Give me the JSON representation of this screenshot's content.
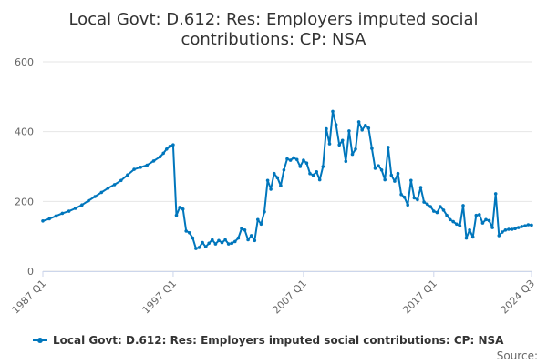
{
  "chart_data": {
    "type": "line",
    "title_line1": "Local Govt: D.612: Res: Employers imputed social",
    "title_line2": "contributions: CP: NSA",
    "ylim": [
      0,
      600
    ],
    "y_ticks": [
      "0",
      "200",
      "400",
      "600"
    ],
    "x_ticks": [
      {
        "label": "1987 Q1",
        "x": 1987.0
      },
      {
        "label": "1997 Q1",
        "x": 1997.0
      },
      {
        "label": "2007 Q1",
        "x": 2007.0
      },
      {
        "label": "2017 Q1",
        "x": 2017.0
      },
      {
        "label": "2024 Q3",
        "x": 2024.5
      }
    ],
    "xlim": [
      1987.0,
      2024.5
    ],
    "grid": true,
    "legend_position": "bottom",
    "series": [
      {
        "name": "Local Govt: D.612: Res: Employers imputed social contributions: CP: NSA",
        "color": "#0076bc",
        "points": [
          [
            1987.0,
            144
          ],
          [
            1987.5,
            150
          ],
          [
            1988.0,
            158
          ],
          [
            1988.5,
            166
          ],
          [
            1989.0,
            172
          ],
          [
            1989.5,
            180
          ],
          [
            1990.0,
            190
          ],
          [
            1990.5,
            202
          ],
          [
            1991.0,
            214
          ],
          [
            1991.5,
            226
          ],
          [
            1992.0,
            238
          ],
          [
            1992.5,
            248
          ],
          [
            1993.0,
            260
          ],
          [
            1993.5,
            276
          ],
          [
            1994.0,
            292
          ],
          [
            1994.5,
            298
          ],
          [
            1995.0,
            304
          ],
          [
            1995.5,
            316
          ],
          [
            1996.0,
            328
          ],
          [
            1996.25,
            338
          ],
          [
            1996.5,
            350
          ],
          [
            1996.75,
            358
          ],
          [
            1997.0,
            362
          ],
          [
            1997.25,
            160
          ],
          [
            1997.5,
            183
          ],
          [
            1997.75,
            178
          ],
          [
            1998.0,
            115
          ],
          [
            1998.25,
            110
          ],
          [
            1998.5,
            95
          ],
          [
            1998.75,
            65
          ],
          [
            1999.0,
            68
          ],
          [
            1999.25,
            82
          ],
          [
            1999.5,
            70
          ],
          [
            1999.75,
            80
          ],
          [
            2000.0,
            90
          ],
          [
            2000.25,
            78
          ],
          [
            2000.5,
            88
          ],
          [
            2000.75,
            82
          ],
          [
            2001.0,
            90
          ],
          [
            2001.25,
            78
          ],
          [
            2001.5,
            80
          ],
          [
            2001.75,
            85
          ],
          [
            2002.0,
            95
          ],
          [
            2002.25,
            122
          ],
          [
            2002.5,
            118
          ],
          [
            2002.75,
            90
          ],
          [
            2003.0,
            102
          ],
          [
            2003.25,
            88
          ],
          [
            2003.5,
            148
          ],
          [
            2003.75,
            135
          ],
          [
            2004.0,
            170
          ],
          [
            2004.25,
            260
          ],
          [
            2004.5,
            235
          ],
          [
            2004.75,
            280
          ],
          [
            2005.0,
            268
          ],
          [
            2005.25,
            245
          ],
          [
            2005.5,
            290
          ],
          [
            2005.75,
            322
          ],
          [
            2006.0,
            318
          ],
          [
            2006.25,
            325
          ],
          [
            2006.5,
            320
          ],
          [
            2006.75,
            300
          ],
          [
            2007.0,
            318
          ],
          [
            2007.25,
            310
          ],
          [
            2007.5,
            280
          ],
          [
            2007.75,
            275
          ],
          [
            2008.0,
            285
          ],
          [
            2008.25,
            262
          ],
          [
            2008.5,
            300
          ],
          [
            2008.75,
            408
          ],
          [
            2009.0,
            365
          ],
          [
            2009.25,
            458
          ],
          [
            2009.5,
            420
          ],
          [
            2009.75,
            362
          ],
          [
            2010.0,
            375
          ],
          [
            2010.25,
            315
          ],
          [
            2010.5,
            402
          ],
          [
            2010.75,
            335
          ],
          [
            2011.0,
            350
          ],
          [
            2011.25,
            428
          ],
          [
            2011.5,
            405
          ],
          [
            2011.75,
            418
          ],
          [
            2012.0,
            410
          ],
          [
            2012.25,
            352
          ],
          [
            2012.5,
            295
          ],
          [
            2012.75,
            302
          ],
          [
            2013.0,
            290
          ],
          [
            2013.25,
            262
          ],
          [
            2013.5,
            355
          ],
          [
            2013.75,
            275
          ],
          [
            2014.0,
            258
          ],
          [
            2014.25,
            280
          ],
          [
            2014.5,
            220
          ],
          [
            2014.75,
            212
          ],
          [
            2015.0,
            190
          ],
          [
            2015.25,
            260
          ],
          [
            2015.5,
            210
          ],
          [
            2015.75,
            205
          ],
          [
            2016.0,
            240
          ],
          [
            2016.25,
            198
          ],
          [
            2016.5,
            192
          ],
          [
            2016.75,
            185
          ],
          [
            2017.0,
            172
          ],
          [
            2017.25,
            168
          ],
          [
            2017.5,
            185
          ],
          [
            2017.75,
            175
          ],
          [
            2018.0,
            160
          ],
          [
            2018.25,
            148
          ],
          [
            2018.5,
            142
          ],
          [
            2018.75,
            135
          ],
          [
            2019.0,
            130
          ],
          [
            2019.25,
            188
          ],
          [
            2019.5,
            95
          ],
          [
            2019.75,
            118
          ],
          [
            2020.0,
            98
          ],
          [
            2020.25,
            160
          ],
          [
            2020.5,
            162
          ],
          [
            2020.75,
            138
          ],
          [
            2021.0,
            148
          ],
          [
            2021.25,
            145
          ],
          [
            2021.5,
            125
          ],
          [
            2021.75,
            222
          ],
          [
            2022.0,
            102
          ],
          [
            2022.25,
            112
          ],
          [
            2022.5,
            118
          ],
          [
            2022.75,
            120
          ],
          [
            2023.0,
            120
          ],
          [
            2023.25,
            122
          ],
          [
            2023.5,
            125
          ],
          [
            2023.75,
            128
          ],
          [
            2024.0,
            130
          ],
          [
            2024.25,
            133
          ],
          [
            2024.5,
            132
          ]
        ]
      }
    ],
    "credit": "Source:"
  }
}
